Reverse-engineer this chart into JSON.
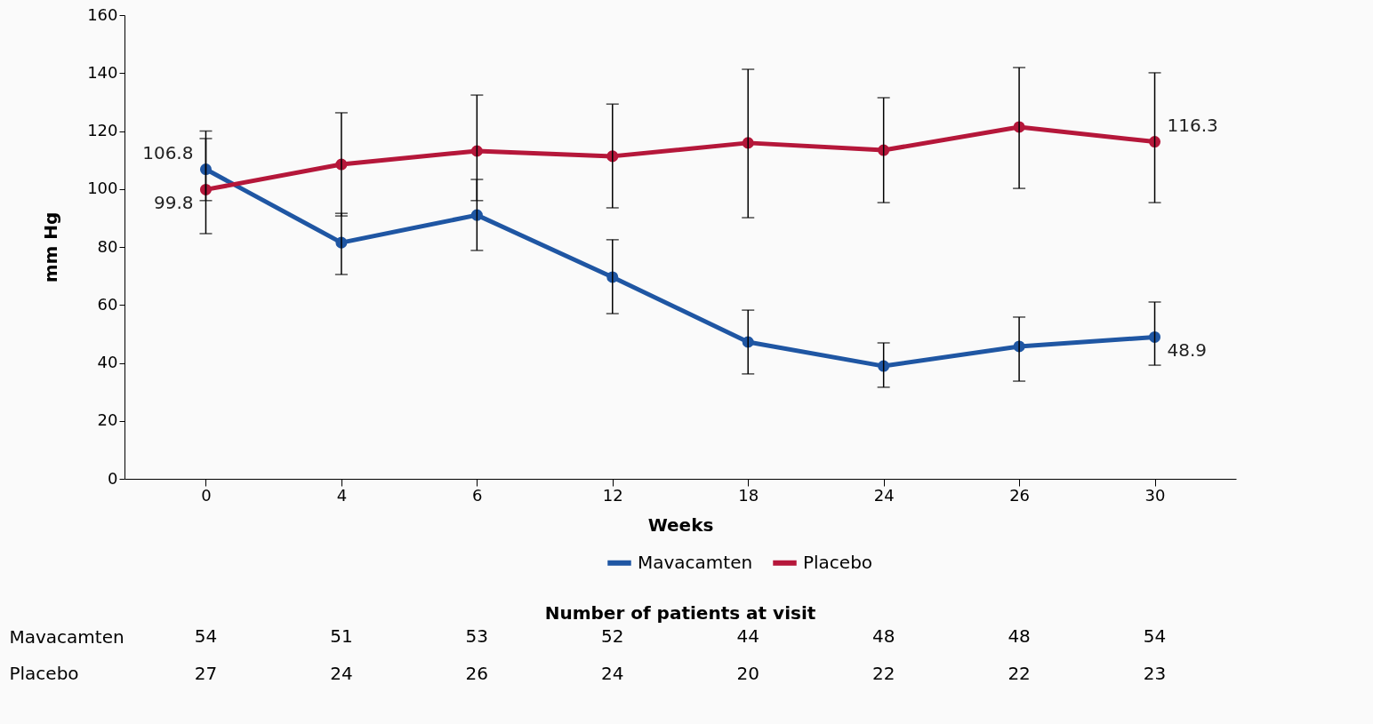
{
  "chart_data": {
    "type": "line",
    "xlabel": "Weeks",
    "ylabel": "mm Hg",
    "categories": [
      "0",
      "4",
      "6",
      "12",
      "18",
      "24",
      "26",
      "30"
    ],
    "ylim": [
      0,
      160
    ],
    "yticks": [
      0,
      20,
      40,
      60,
      80,
      100,
      120,
      140,
      160
    ],
    "grid": false,
    "legend": "bottom",
    "marker": "circle",
    "line_style": "solid",
    "series": [
      {
        "name": "Mavacamten",
        "color": "#1f56a3",
        "values": [
          106.8,
          81.5,
          91,
          69.6,
          47.2,
          38.9,
          45.7,
          48.9
        ],
        "errors": [
          [
            96,
            120
          ],
          [
            70.5,
            91.6
          ],
          [
            78.8,
            103.3
          ],
          [
            57,
            82.5
          ],
          [
            36.2,
            58.2
          ],
          [
            31.6,
            46.9
          ],
          [
            33.7,
            55.8
          ],
          [
            39.2,
            61
          ]
        ],
        "value_labels": [
          "106.8",
          null,
          null,
          null,
          null,
          null,
          null,
          "48.9"
        ]
      },
      {
        "name": "Placebo",
        "color": "#b5173a",
        "values": [
          99.8,
          108.5,
          113.1,
          111.3,
          115.9,
          113.4,
          121.4,
          116.3
        ],
        "errors": [
          [
            84.6,
            117.4
          ],
          [
            90.7,
            126.3
          ],
          [
            96,
            132.4
          ],
          [
            93.5,
            129.3
          ],
          [
            90.1,
            141.3
          ],
          [
            95.3,
            131.5
          ],
          [
            100.2,
            141.9
          ],
          [
            95.3,
            140.1
          ]
        ],
        "value_labels": [
          "99.8",
          null,
          null,
          null,
          null,
          null,
          null,
          "116.3"
        ]
      }
    ],
    "annotations": [
      "Number of patients at visit",
      "Mavacamten",
      "54",
      "51",
      "53",
      "52",
      "44",
      "48",
      "48",
      "54",
      "Placebo",
      "27",
      "24",
      "26",
      "24",
      "20",
      "22",
      "22",
      "23"
    ]
  }
}
